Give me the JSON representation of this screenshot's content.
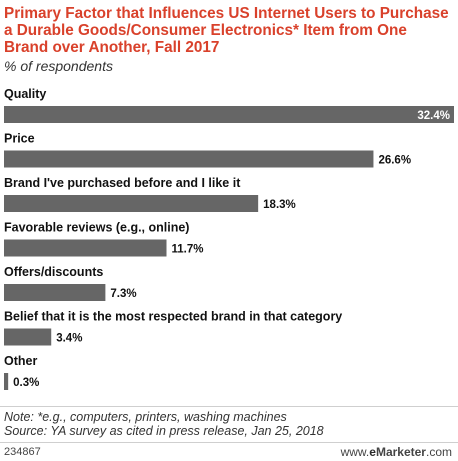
{
  "chart_data": {
    "type": "bar",
    "orientation": "horizontal",
    "title": "Primary Factor that Influences US Internet Users to Purchase a Durable Goods/Consumer Electronics* Item from One Brand over Another, Fall 2017",
    "subtitle": "% of respondents",
    "categories": [
      "Quality",
      "Price",
      "Brand I've purchased before and I like it",
      "Favorable reviews (e.g., online)",
      "Offers/discounts",
      "Belief that it is the most respected brand in that category",
      "Other"
    ],
    "values": [
      32.4,
      26.6,
      18.3,
      11.7,
      7.3,
      3.4,
      0.3
    ],
    "value_labels": [
      "32.4%",
      "26.6%",
      "18.3%",
      "11.7%",
      "7.3%",
      "3.4%",
      "0.3%"
    ],
    "bar_color": "#666666",
    "xlim": [
      0,
      32.4
    ],
    "grid": false,
    "legend": "none"
  },
  "footer": {
    "note": "Note: *e.g., computers, printers, washing machines",
    "source": "Source: YA survey as cited in press release, Jan 25, 2018",
    "chart_id": "234867",
    "brand_prefix": "www.",
    "brand_e": "e",
    "brand_name": "Marketer",
    "brand_suffix": ".com"
  }
}
